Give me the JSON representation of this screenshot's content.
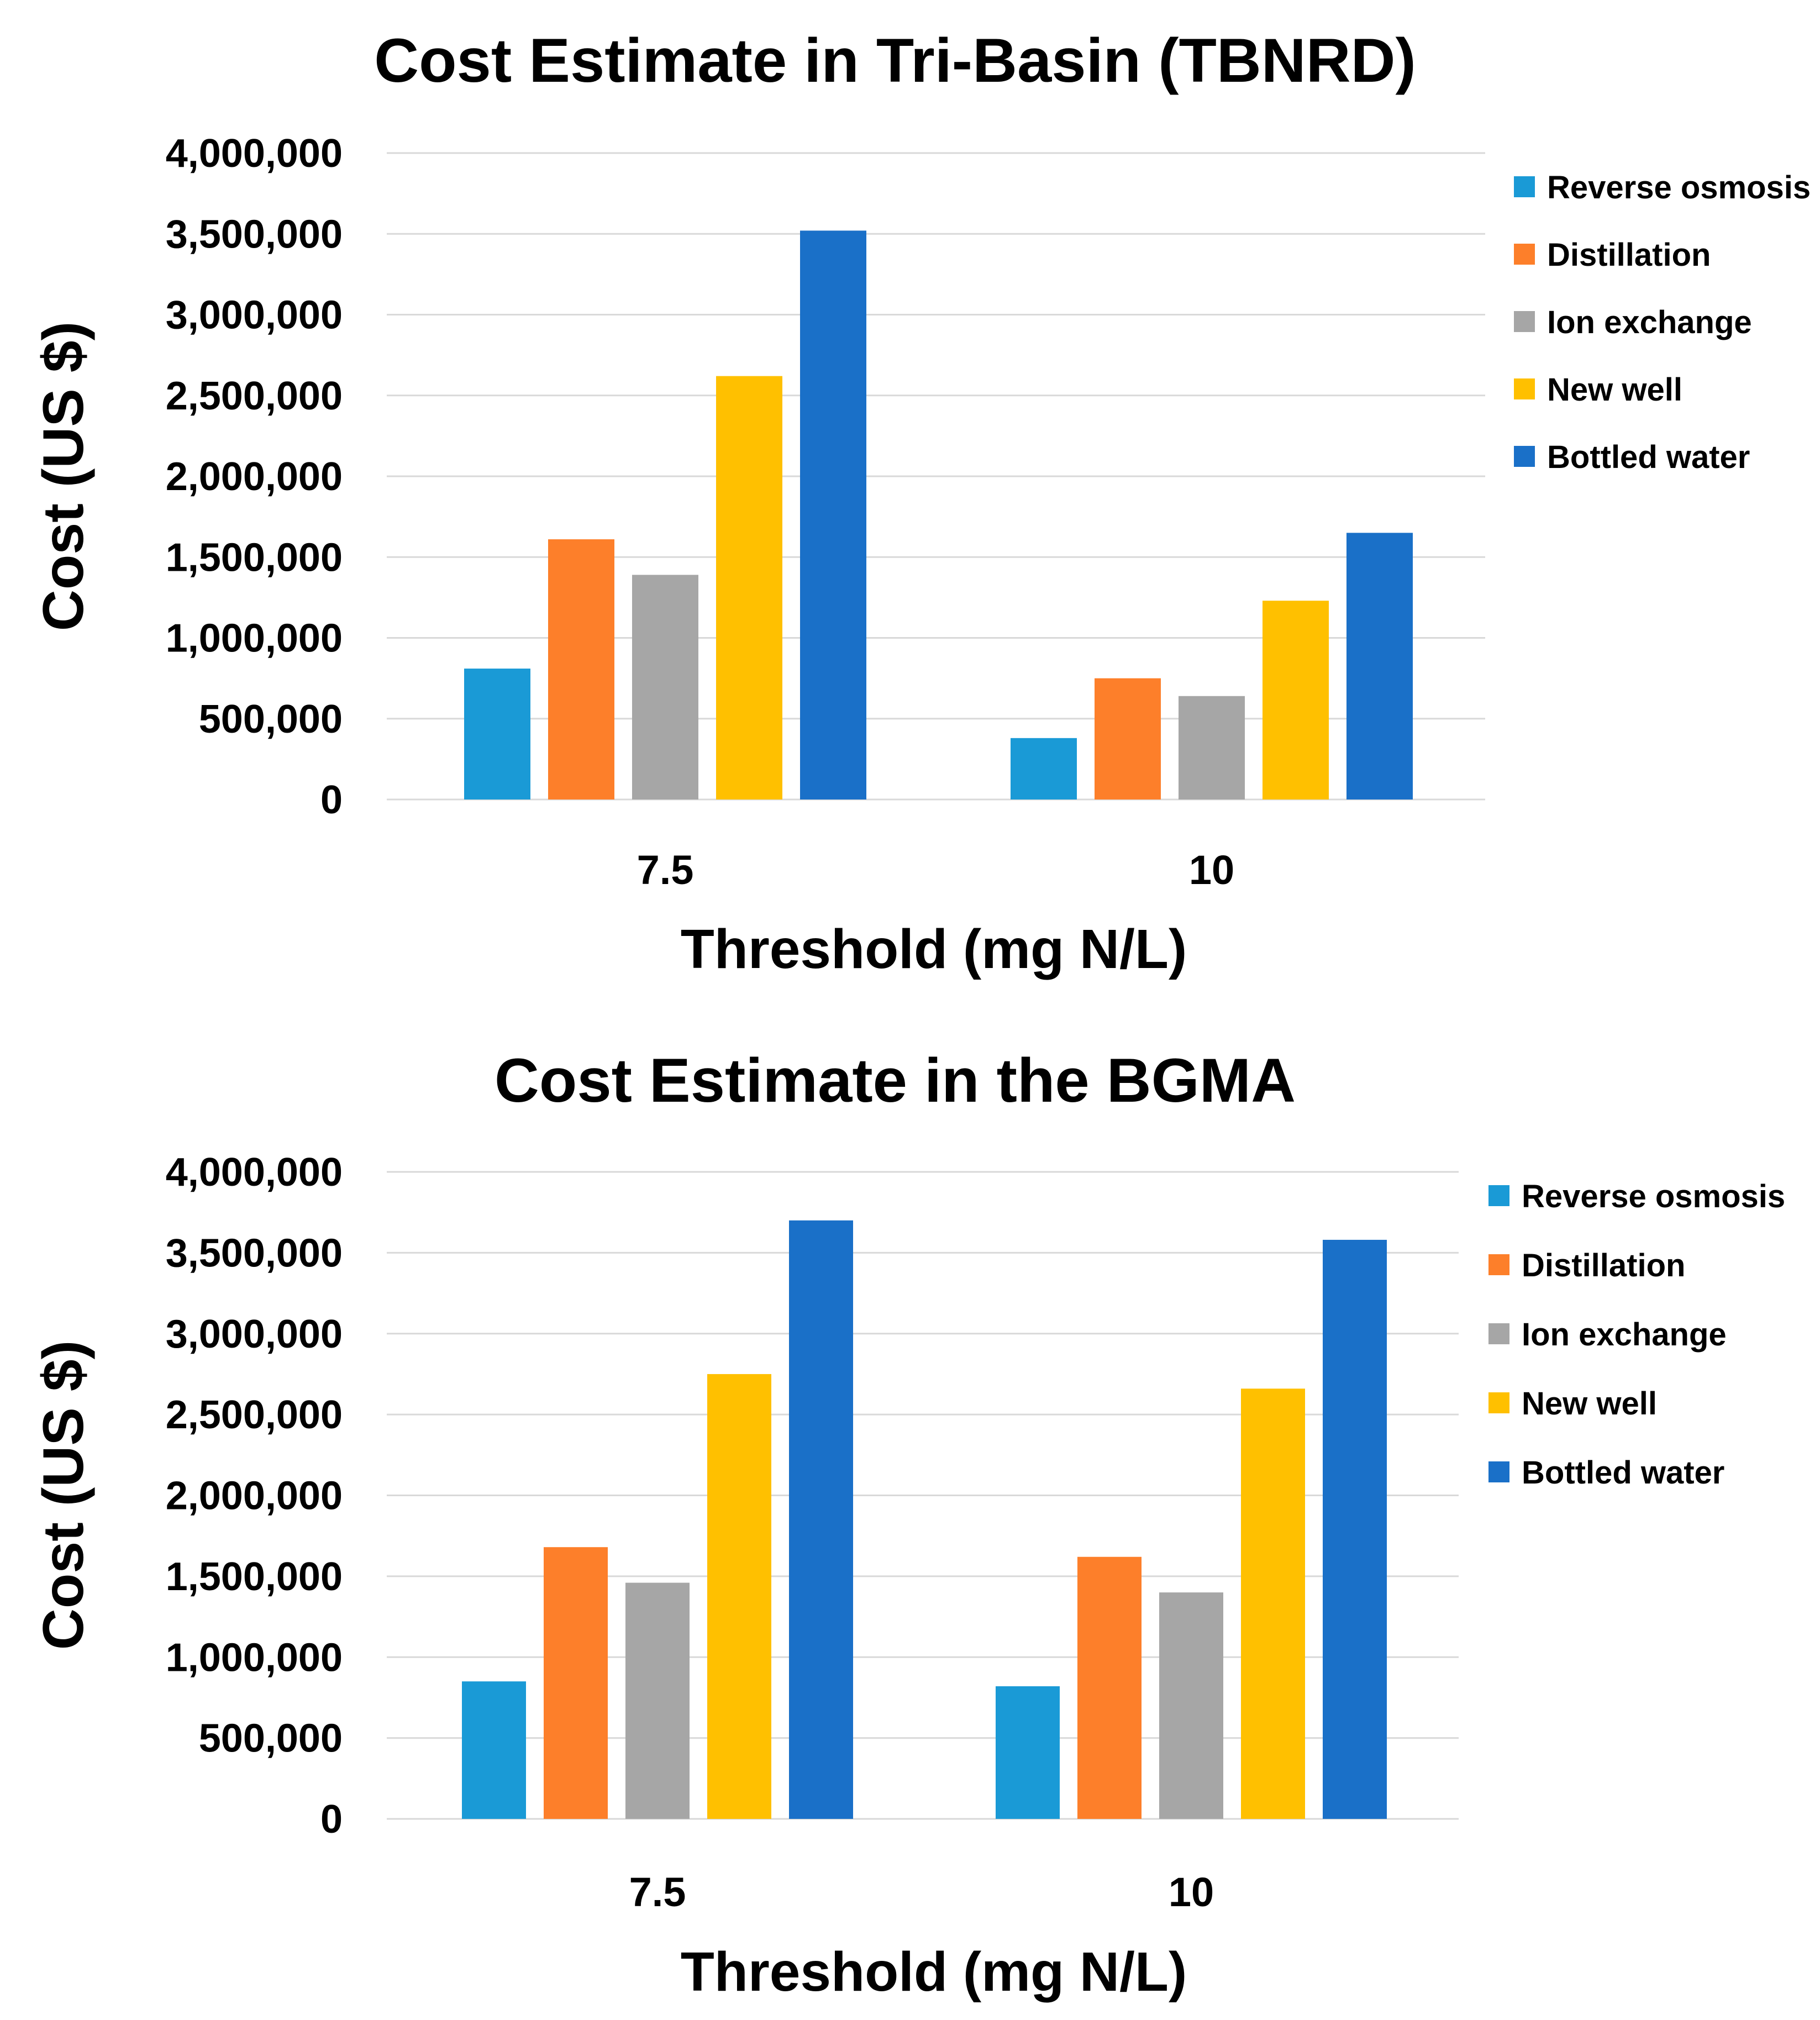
{
  "chart_data": [
    {
      "type": "bar",
      "title": "Cost Estimate in Tri-Basin (TBNRD)",
      "xlabel": "Threshold (mg N/L)",
      "ylabel": "Cost (US $)",
      "categories": [
        "7.5",
        "10"
      ],
      "ylim": [
        0,
        4000000
      ],
      "yticks": [
        0,
        500000,
        1000000,
        1500000,
        2000000,
        2500000,
        3000000,
        3500000,
        4000000
      ],
      "ytick_labels": [
        "0",
        "500,000",
        "1,000,000",
        "1,500,000",
        "2,000,000",
        "2,500,000",
        "3,000,000",
        "3,500,000",
        "4,000,000"
      ],
      "grid": true,
      "legend": "right",
      "series": [
        {
          "name": "Reverse osmosis",
          "color": "#1a9ad6",
          "values": [
            810000,
            380000
          ]
        },
        {
          "name": "Distillation",
          "color": "#fd7f2a",
          "values": [
            1610000,
            750000
          ]
        },
        {
          "name": "Ion exchange",
          "color": "#a6a6a6",
          "values": [
            1390000,
            640000
          ]
        },
        {
          "name": "New well",
          "color": "#ffc000",
          "values": [
            2620000,
            1230000
          ]
        },
        {
          "name": "Bottled water",
          "color": "#1a70c8",
          "values": [
            3520000,
            1650000
          ]
        }
      ]
    },
    {
      "type": "bar",
      "title": "Cost Estimate in the BGMA",
      "xlabel": "Threshold (mg N/L)",
      "ylabel": "Cost (US $)",
      "categories": [
        "7.5",
        "10"
      ],
      "ylim": [
        0,
        4000000
      ],
      "yticks": [
        0,
        500000,
        1000000,
        1500000,
        2000000,
        2500000,
        3000000,
        3500000,
        4000000
      ],
      "ytick_labels": [
        "0",
        "500,000",
        "1,000,000",
        "1,500,000",
        "2,000,000",
        "2,500,000",
        "3,000,000",
        "3,500,000",
        "4,000,000"
      ],
      "grid": true,
      "legend": "right",
      "series": [
        {
          "name": "Reverse osmosis",
          "color": "#1a9ad6",
          "values": [
            850000,
            820000
          ]
        },
        {
          "name": "Distillation",
          "color": "#fd7f2a",
          "values": [
            1680000,
            1620000
          ]
        },
        {
          "name": "Ion exchange",
          "color": "#a6a6a6",
          "values": [
            1460000,
            1400000
          ]
        },
        {
          "name": "New well",
          "color": "#ffc000",
          "values": [
            2750000,
            2660000
          ]
        },
        {
          "name": "Bottled water",
          "color": "#1a70c8",
          "values": [
            3700000,
            3580000
          ]
        }
      ]
    }
  ]
}
